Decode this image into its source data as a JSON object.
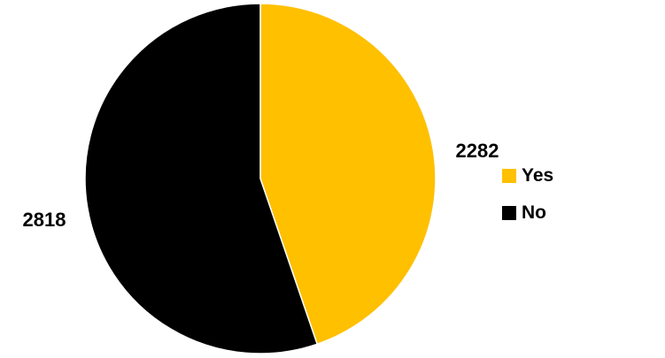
{
  "chart_data": {
    "type": "pie",
    "categories": [
      "Yes",
      "No"
    ],
    "values": [
      2282,
      2818
    ],
    "colors": [
      "#FFC000",
      "#000000"
    ],
    "data_labels": [
      "2282",
      "2818"
    ],
    "legend": {
      "position": "right",
      "items": [
        {
          "label": "Yes",
          "color": "#FFC000"
        },
        {
          "label": "No",
          "color": "#000000"
        }
      ]
    },
    "start_angle": "12 o'clock",
    "direction": "clockwise"
  }
}
